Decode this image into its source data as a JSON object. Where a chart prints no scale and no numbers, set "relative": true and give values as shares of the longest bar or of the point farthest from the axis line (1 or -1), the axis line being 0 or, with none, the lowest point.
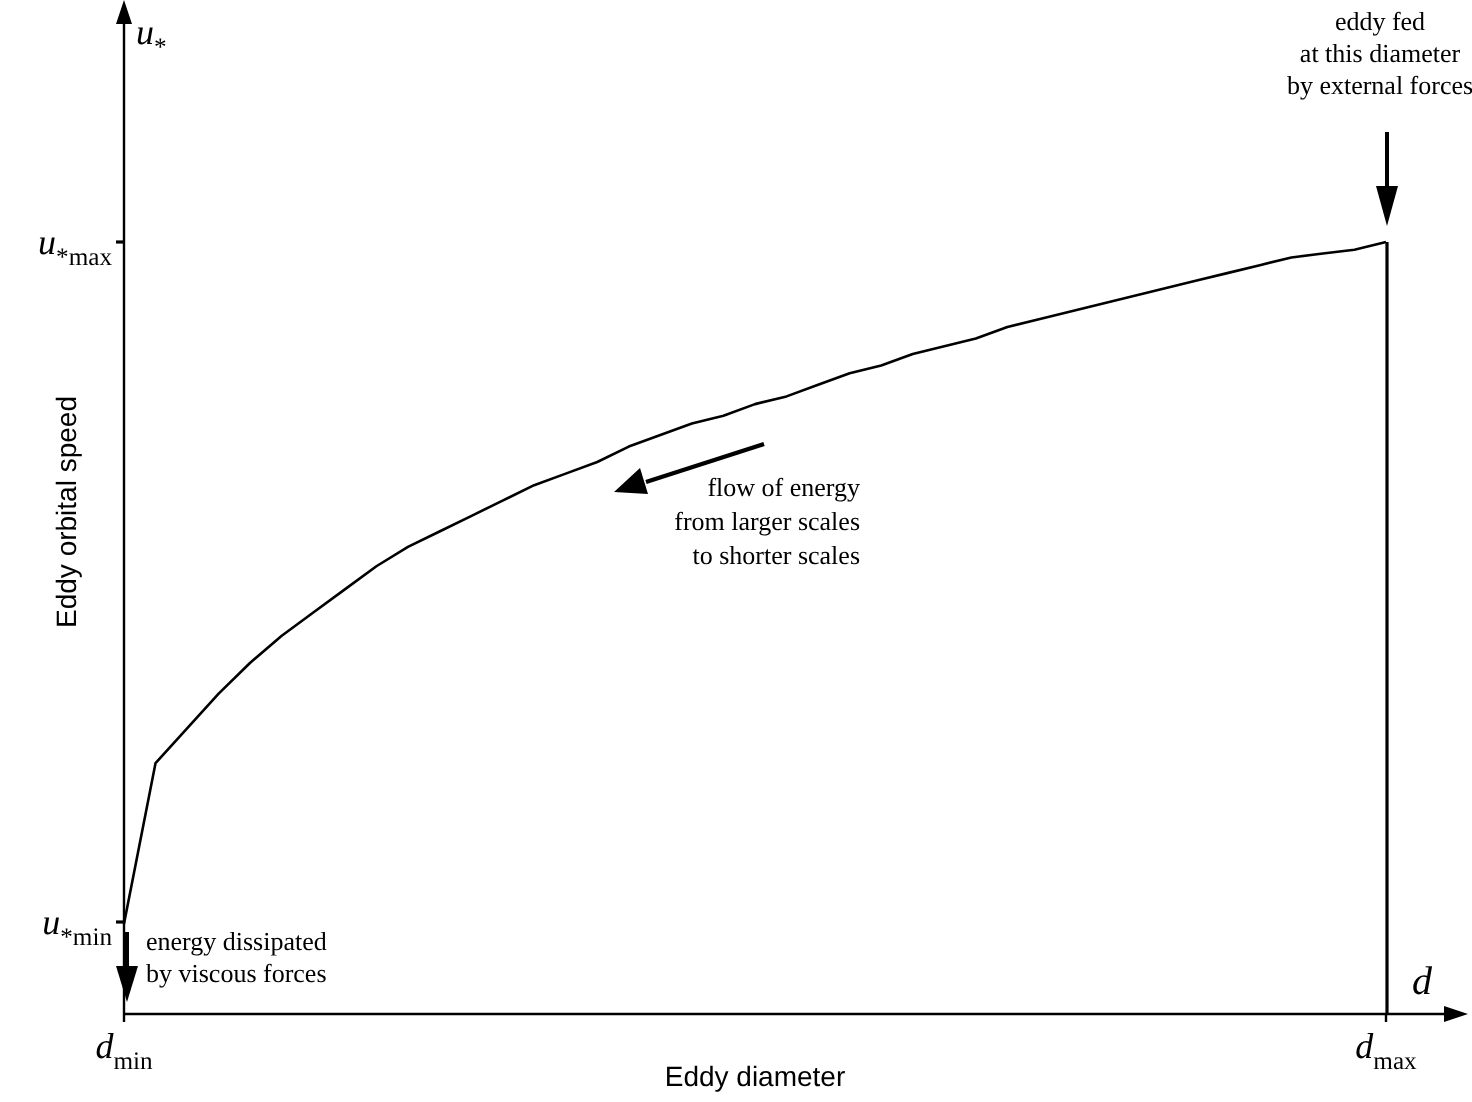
{
  "chart_data": {
    "type": "line",
    "relative": true,
    "xlabel": "Eddy diameter",
    "ylabel": "Eddy orbital speed",
    "categories": [
      "d$_{min}$",
      null,
      null,
      null,
      null,
      null,
      null,
      null,
      null,
      null,
      null,
      null,
      null,
      null,
      null,
      null,
      null,
      null,
      null,
      null,
      null,
      null,
      null,
      null,
      null,
      null,
      null,
      null,
      null,
      null,
      null,
      null,
      null,
      null,
      null,
      null,
      null,
      null,
      null,
      null,
      "d$_{max}$"
    ],
    "series": [
      {
        "color": "#000000",
        "values": [
          0.117,
          0.325,
          0.37,
          0.415,
          0.455,
          0.49,
          0.52,
          0.55,
          0.58,
          0.605,
          0.625,
          0.645,
          0.665,
          0.685,
          0.7,
          0.715,
          0.735,
          0.75,
          0.765,
          0.775,
          0.79,
          0.8,
          0.815,
          0.83,
          0.84,
          0.855,
          0.865,
          0.875,
          0.89,
          0.9,
          0.91,
          0.92,
          0.93,
          0.94,
          0.95,
          0.96,
          0.97,
          0.98,
          0.985,
          0.99,
          1
        ]
      }
    ],
    "ref_lines": [
      {
        "axis": "x",
        "value": "d$_{max}$",
        "color": "#000000"
      }
    ],
    "annotations": [
      "u$_{*}$",
      "d",
      "u$_{*max}$",
      "u$_{*min}$",
      "eddy fed\nat this diameter\nby external forces",
      "energy dissipated\nby viscous forces",
      "flow of energy\nfrom larger scales\nto shorter scales"
    ],
    "legend": false,
    "marker": "none",
    "line_style": "solid"
  }
}
